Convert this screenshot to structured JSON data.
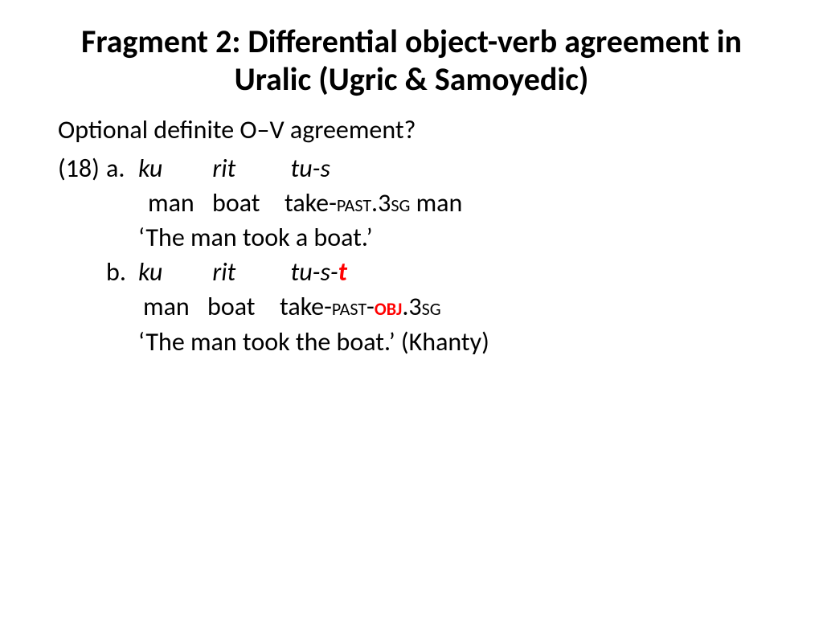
{
  "title": "Fragment 2: Differential object-verb agreement in Uralic (Ugric & Samoyedic)",
  "question": "Optional definite O–V agreement?",
  "ex_num": "(18)",
  "a": {
    "label": "a.",
    "src": {
      "w1": "ku",
      "w2": "rit",
      "w3": "tu-s"
    },
    "gloss": {
      "w1": "man",
      "w2": "boat",
      "w3_pre": "take-",
      "w3_sc1": "past",
      "w3_dot": ".",
      "w3_num": "3",
      "w3_sc2": "sg",
      "tail": " man"
    },
    "trans": "‘The man took a boat.’"
  },
  "b": {
    "label": "b.",
    "src": {
      "w1": "ku",
      "w2": "rit",
      "w3_pre": "tu-s-",
      "w3_hl": "t"
    },
    "gloss": {
      "w1": "man",
      "w2": "boat",
      "w3_pre": "take-",
      "w3_sc1": "past",
      "w3_dash": "-",
      "w3_obj": "obj",
      "w3_dot": ".",
      "w3_num": "3",
      "w3_sc2": "sg"
    },
    "trans": "‘The man took the boat.’ (Khanty)"
  },
  "colors": {
    "text": "#000000",
    "highlight": "#ff0000",
    "bg": "#ffffff"
  },
  "fonts": {
    "title_size": 40,
    "body_size": 32
  }
}
